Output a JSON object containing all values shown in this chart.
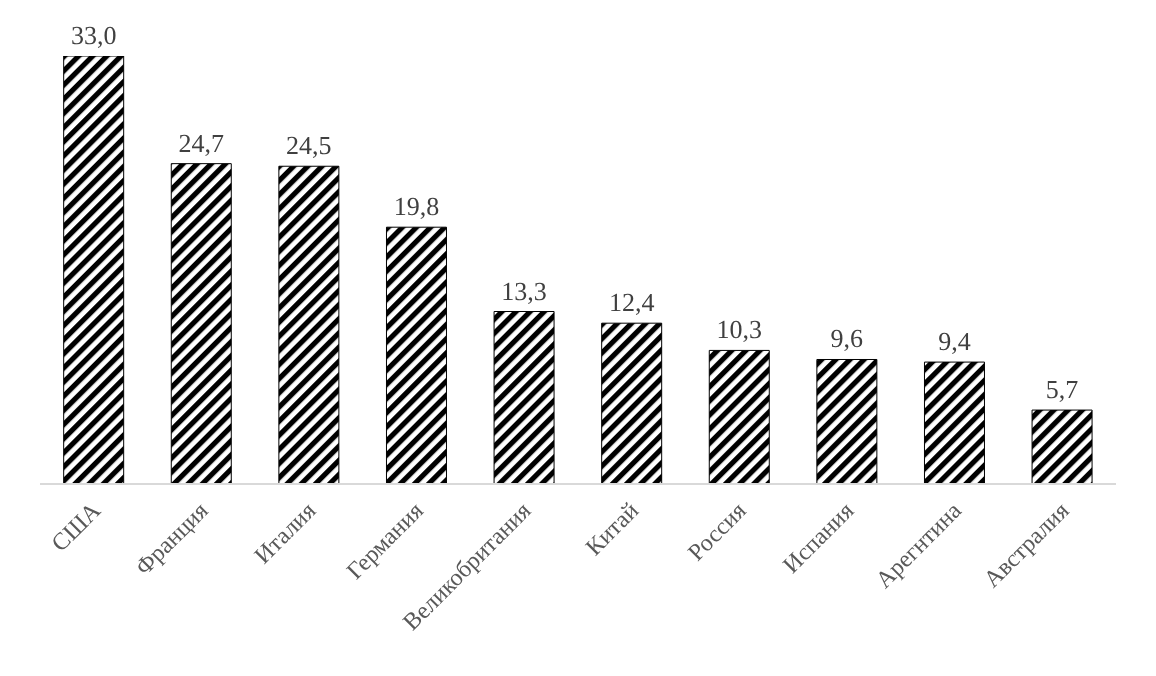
{
  "chart_data": {
    "type": "bar",
    "categories": [
      "США",
      "Франция",
      "Италия",
      "Германия",
      "Великобритания",
      "Китай",
      "Россия",
      "Испания",
      "Арегнтина",
      "Австралия"
    ],
    "values": [
      33.0,
      24.7,
      24.5,
      19.8,
      13.3,
      12.4,
      10.3,
      9.6,
      9.4,
      5.7
    ],
    "value_labels": [
      "33,0",
      "24,7",
      "24,5",
      "19,8",
      "13,3",
      "12,4",
      "10,3",
      "9,6",
      "9,4",
      "5,7"
    ],
    "color": "#000000"
  }
}
